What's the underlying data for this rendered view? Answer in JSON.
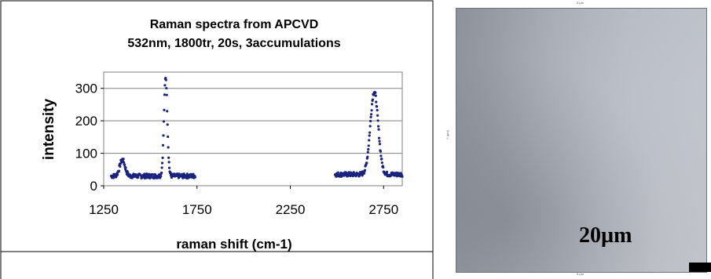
{
  "chart_data": {
    "type": "scatter",
    "title": [
      "Raman spectra from APCVD",
      "532nm, 1800tr, 20s, 3accumulations"
    ],
    "xlabel": "raman shift (cm-1)",
    "ylabel": "intensity",
    "xlim": [
      1250,
      2850
    ],
    "ylim": [
      0,
      350
    ],
    "xticks": [
      1250,
      1750,
      2250,
      2750
    ],
    "yticks": [
      0,
      100,
      200,
      300
    ],
    "grid": "horizontal",
    "legend": "none",
    "marker_color": "#1a237e",
    "segments": [
      {
        "x_start": 1290,
        "x_end": 1740,
        "baseline": 30,
        "peaks": [
          {
            "x": 1350,
            "height": 80,
            "width": 14
          },
          {
            "x": 1582,
            "height": 335,
            "width": 9
          }
        ]
      },
      {
        "x_start": 2490,
        "x_end": 2850,
        "baseline": 35,
        "peaks": [
          {
            "x": 2700,
            "height": 290,
            "width": 21
          }
        ]
      }
    ]
  },
  "micrograph": {
    "scalebar_label": "20µm",
    "top_label": "5 µm",
    "bottom_label": "5 µm",
    "side_label": "Y (µm)"
  }
}
